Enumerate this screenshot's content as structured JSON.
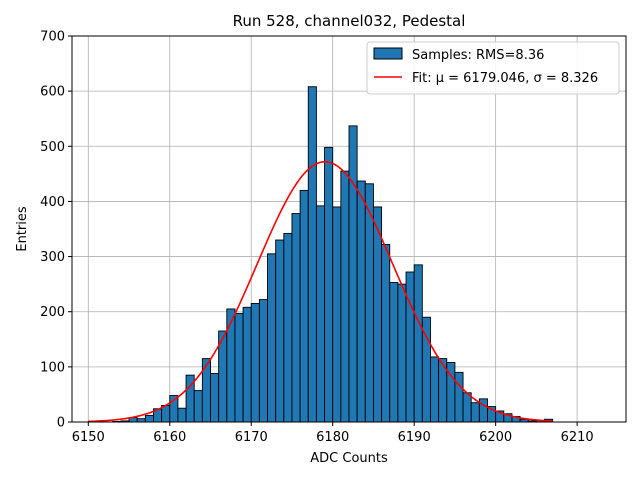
{
  "chart_data": {
    "type": "bar",
    "title": "Run 528, channel032, Pedestal",
    "xlabel": "ADC Counts",
    "ylabel": "Entries",
    "xlim": [
      6148,
      6216
    ],
    "ylim": [
      0,
      700
    ],
    "xticks": [
      6150,
      6160,
      6170,
      6180,
      6190,
      6200,
      6210
    ],
    "yticks": [
      0,
      100,
      200,
      300,
      400,
      500,
      600,
      700
    ],
    "grid": true,
    "legend_position": "top-right",
    "colors": {
      "bars": "#1f77b4",
      "fit": "#ff0000",
      "grid": "#b0b0b0"
    },
    "histogram": {
      "name": "Samples: RMS=8.36",
      "bin_width": 1,
      "bin_starts": [
        6150,
        6151,
        6152,
        6153,
        6154,
        6155,
        6156,
        6157,
        6158,
        6159,
        6160,
        6161,
        6162,
        6163,
        6164,
        6165,
        6166,
        6167,
        6168,
        6169,
        6170,
        6171,
        6172,
        6173,
        6174,
        6175,
        6176,
        6177,
        6178,
        6179,
        6180,
        6181,
        6182,
        6183,
        6184,
        6185,
        6186,
        6187,
        6188,
        6189,
        6190,
        6191,
        6192,
        6193,
        6194,
        6195,
        6196,
        6197,
        6198,
        6199,
        6200,
        6201,
        6202,
        6203,
        6204,
        6205,
        6206
      ],
      "counts": [
        1,
        0,
        0,
        1,
        2,
        8,
        6,
        12,
        24,
        30,
        48,
        25,
        85,
        57,
        115,
        88,
        165,
        205,
        197,
        208,
        215,
        222,
        305,
        330,
        342,
        378,
        420,
        608,
        392,
        498,
        390,
        455,
        537,
        437,
        432,
        390,
        322,
        253,
        250,
        272,
        285,
        190,
        118,
        115,
        108,
        90,
        53,
        35,
        42,
        28,
        20,
        15,
        10,
        5,
        2,
        3,
        5
      ]
    },
    "fit": {
      "name": "Fit: μ = 6179.046, σ = 8.326",
      "mu": 6179.046,
      "sigma": 8.326,
      "amplitude": 472,
      "x_range": [
        6150,
        6207
      ]
    }
  }
}
